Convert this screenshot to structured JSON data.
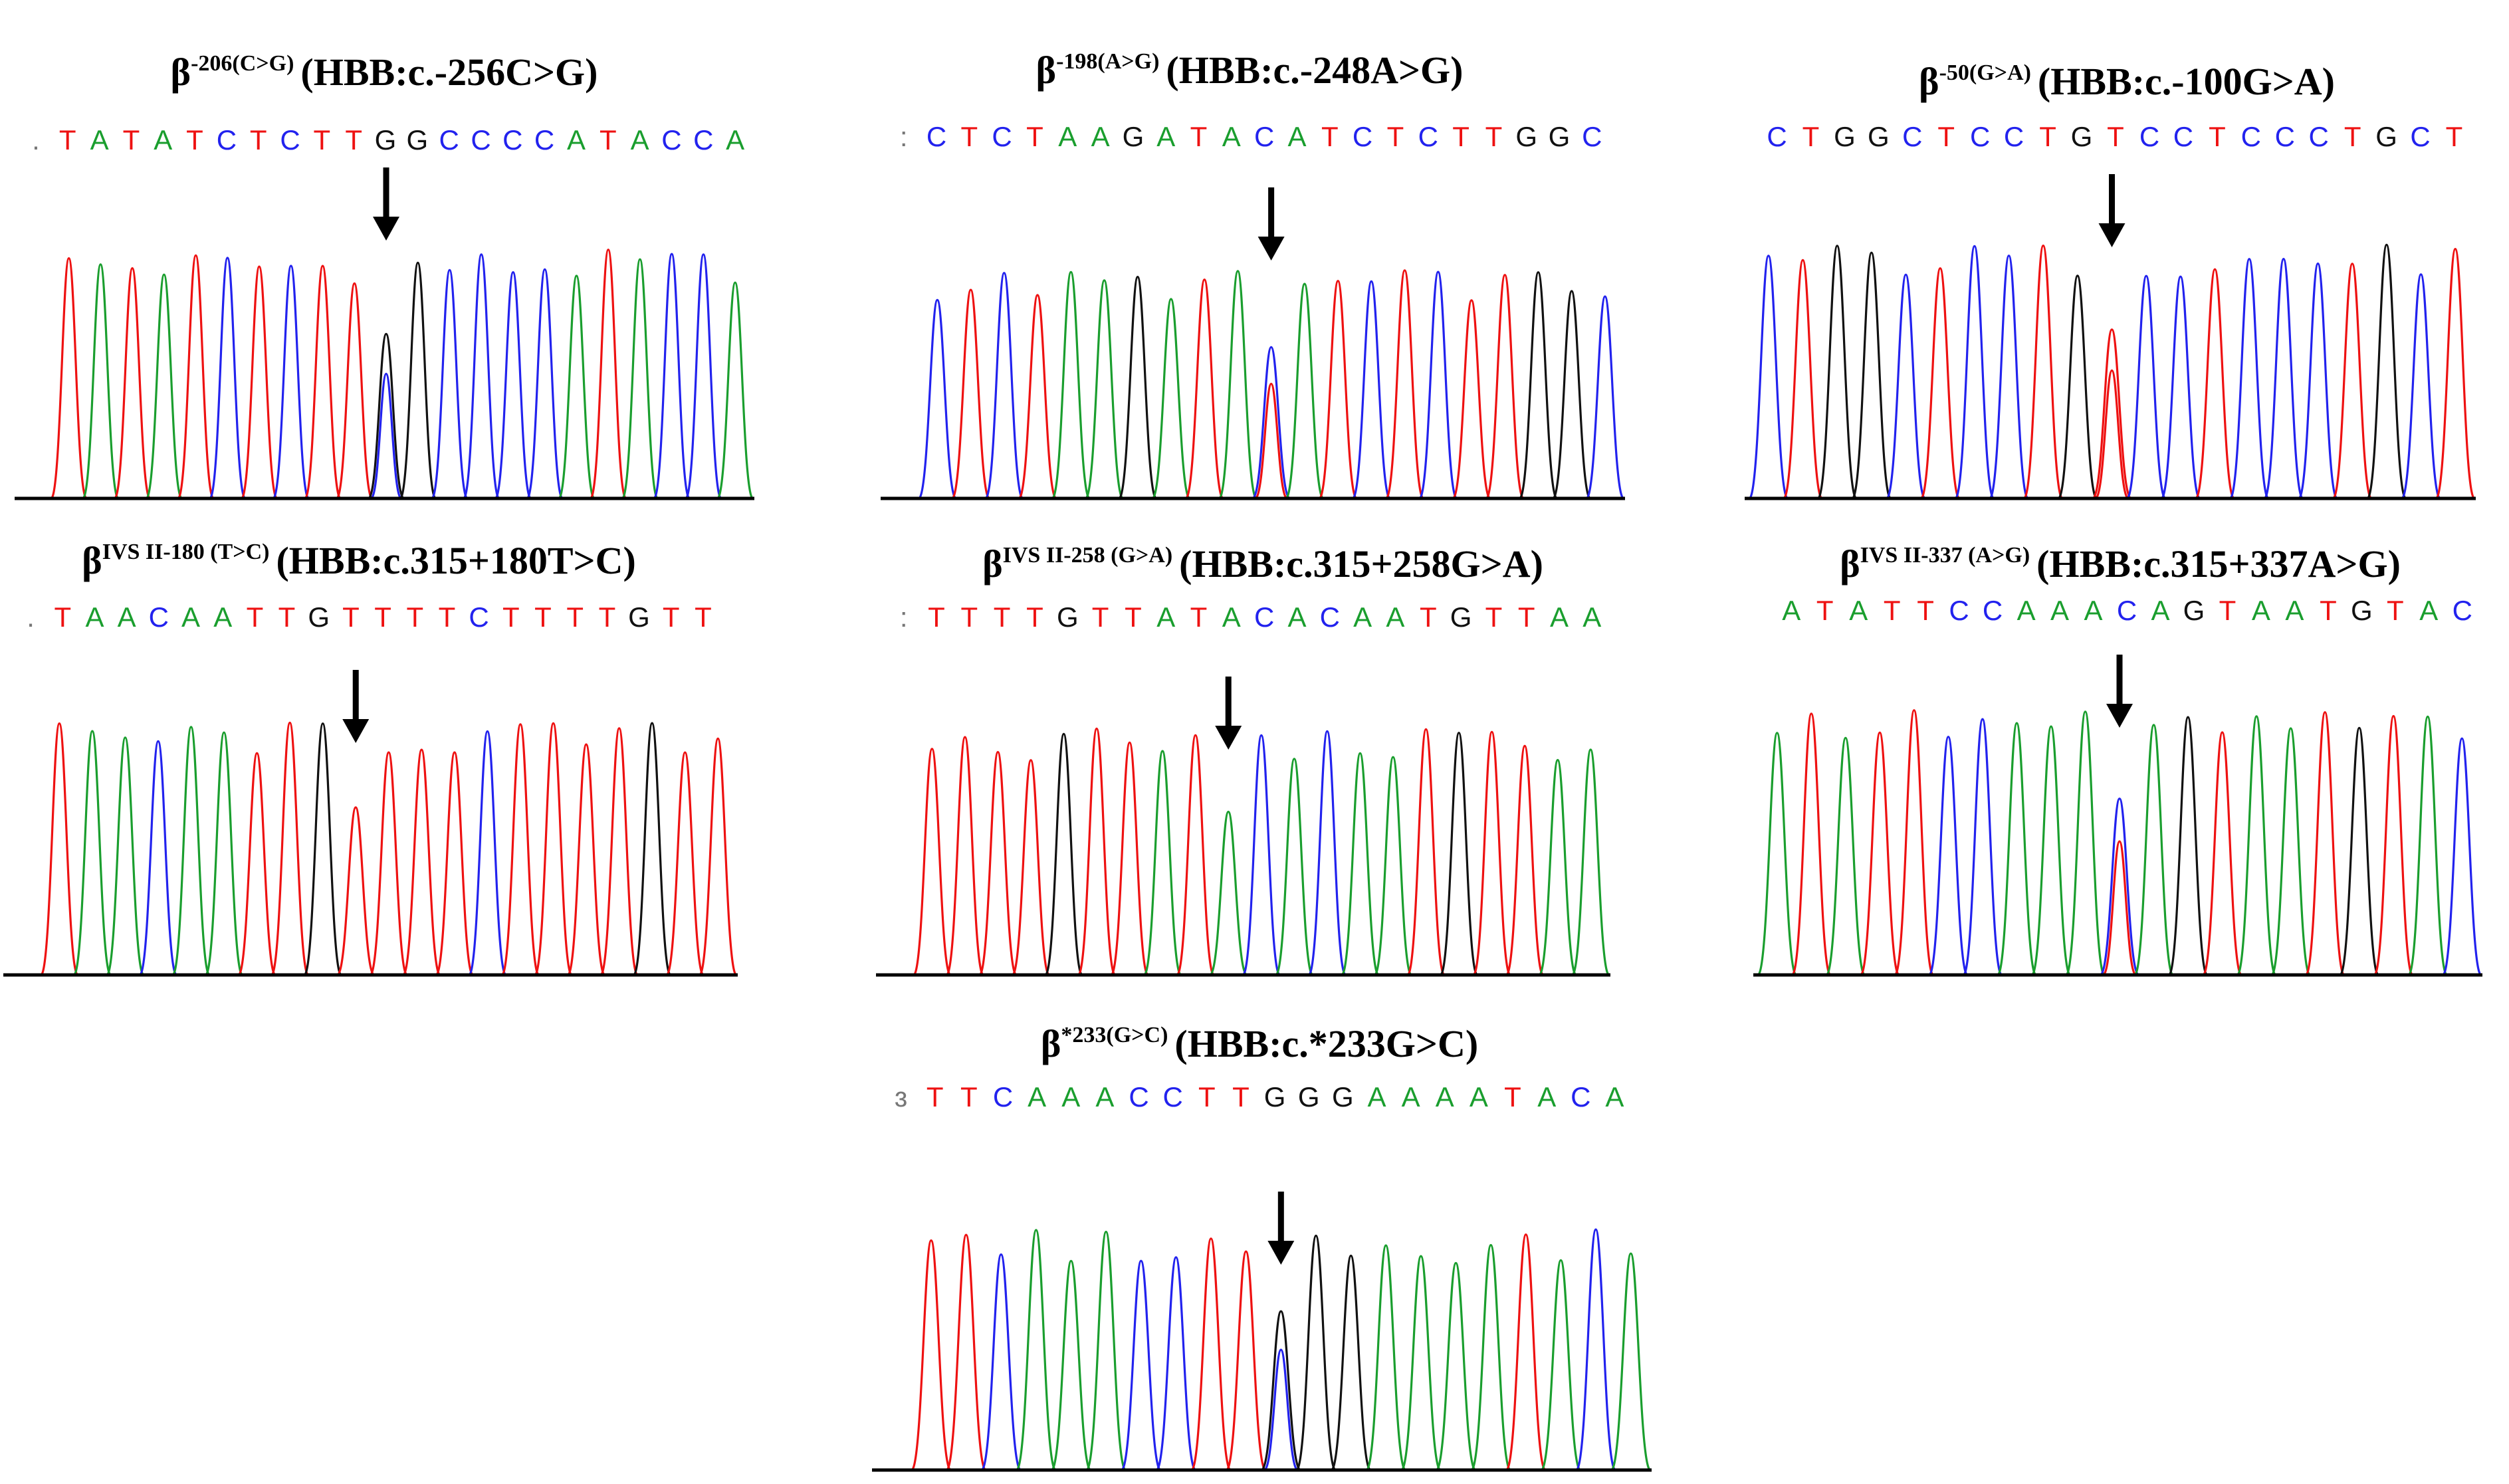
{
  "colors": {
    "A": "#1a9e2e",
    "C": "#2222ee",
    "G": "#111111",
    "T": "#ee1111"
  },
  "panels": [
    {
      "symbol": "β",
      "superscript": "-206(C>G)",
      "notation": "(HBB:c.-256C>G)",
      "sequence": ".TATATCTCTTGGCCCCATACCA",
      "mutation_index": 11,
      "secondary_base": "C"
    },
    {
      "symbol": "β",
      "superscript": "-198(A>G)",
      "notation": "(HBB:c.-248A>G)",
      "sequence": ":CTCTAAGATACATCTCTTGGC",
      "mutation_index": 11,
      "secondary_base": "T"
    },
    {
      "symbol": "β",
      "superscript": "-50(G>A)",
      "notation": "(HBB:c.-100G>A)",
      "sequence": "CTGGCTCCTGTCCTCCCTGCT",
      "mutation_index": 10,
      "secondary_base": "T"
    },
    {
      "symbol": "β",
      "superscript": "IVS II-180 (T>C)",
      "notation": "(HBB:c.315+180T>C)",
      "sequence": ".TAACAATTGTTTTCTTTTGTT",
      "mutation_index": 10,
      "secondary_base": ""
    },
    {
      "symbol": "β",
      "superscript": "IVS II-258 (G>A)",
      "notation": "(HBB:c.315+258G>A)",
      "sequence": ":TTTTGTTATACACAATGTTAA",
      "mutation_index": 10,
      "secondary_base": ""
    },
    {
      "symbol": "β",
      "superscript": "IVS II-337 (A>G)",
      "notation": "(HBB:c.315+337A>G)",
      "sequence": "ATATTCCAAACAGTAATGTAC",
      "mutation_index": 10,
      "secondary_base": "T"
    },
    {
      "symbol": "β",
      "superscript": "*233(G>C)",
      "notation": "(HBB:c.*233G>C)",
      "sequence": "ɜTTCAAACCTTGGGAAAATACA",
      "mutation_index": 11,
      "secondary_base": "C"
    }
  ]
}
